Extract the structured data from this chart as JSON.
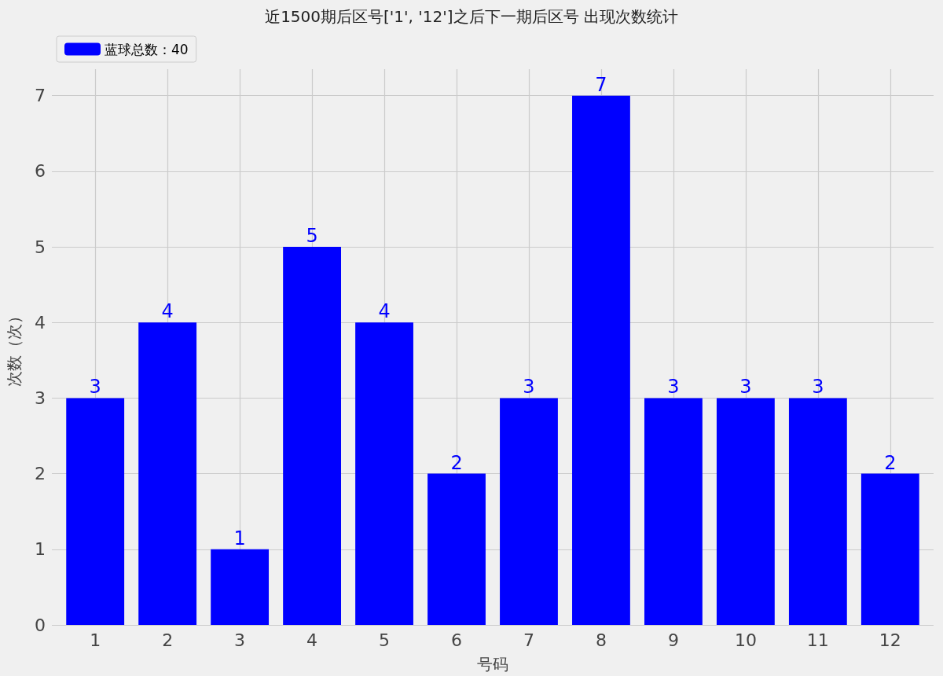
{
  "chart_data": {
    "type": "bar",
    "title": "近1500期后区号['1', '12']之后下一期后区号 出现次数统计",
    "xlabel": "号码",
    "ylabel": "次数（次）",
    "x": [
      1,
      2,
      3,
      4,
      5,
      6,
      7,
      8,
      9,
      10,
      11,
      12
    ],
    "xlim": [
      0.4,
      12.6
    ],
    "xticks": [
      1,
      2,
      3,
      4,
      5,
      6,
      7,
      8,
      9,
      10,
      11,
      12
    ],
    "series": [
      {
        "name": "蓝球总数：40",
        "color": "#0000ff",
        "values": [
          3,
          4,
          1,
          5,
          4,
          2,
          3,
          7,
          3,
          3,
          3,
          2
        ]
      }
    ],
    "ylim": [
      0,
      7.35
    ],
    "yticks": [
      0,
      1,
      2,
      3,
      4,
      5,
      6,
      7
    ],
    "grid": true,
    "legend": "top left",
    "data_labels": true
  }
}
